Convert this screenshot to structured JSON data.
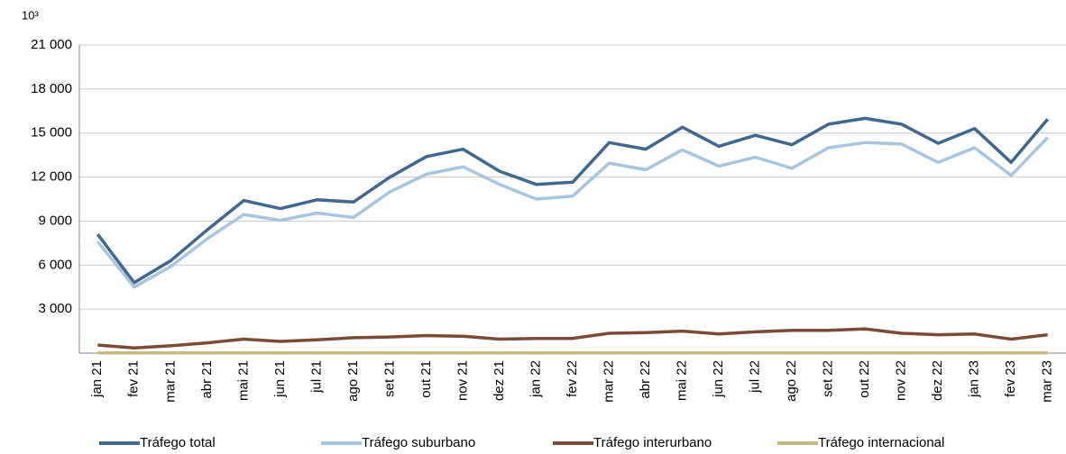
{
  "chart_data": {
    "type": "line",
    "y_label": "10³",
    "categories": [
      "jan 21",
      "fev 21",
      "mar 21",
      "abr 21",
      "mai 21",
      "jun 21",
      "jul 21",
      "ago 21",
      "set 21",
      "out 21",
      "nov 21",
      "dez 21",
      "jan 22",
      "fev 22",
      "mar 22",
      "abr 22",
      "mai 22",
      "jun 22",
      "jul 22",
      "ago 22",
      "set 22",
      "out 22",
      "nov 22",
      "dez 22",
      "jan 23",
      "fev 23",
      "mar 23"
    ],
    "series": [
      {
        "name": "Tráfego total",
        "color": "#41688c",
        "values": [
          8100,
          4800,
          6300,
          8400,
          10400,
          9850,
          10450,
          10300,
          12000,
          13400,
          13900,
          12400,
          11500,
          11650,
          14350,
          13900,
          15400,
          14100,
          14850,
          14200,
          15600,
          16000,
          15600,
          14300,
          15300,
          13000,
          15950
        ]
      },
      {
        "name": "Tráfego suburbano",
        "color": "#a9c5dd",
        "values": [
          7600,
          4500,
          5900,
          7800,
          9450,
          9050,
          9550,
          9250,
          11000,
          12200,
          12700,
          11500,
          10500,
          10700,
          12950,
          12500,
          13850,
          12750,
          13350,
          12600,
          14000,
          14350,
          14250,
          13000,
          14000,
          12100,
          14700
        ]
      },
      {
        "name": "Tráfego interurbano",
        "color": "#7b4b3a",
        "values": [
          550,
          350,
          500,
          700,
          950,
          800,
          900,
          1050,
          1100,
          1200,
          1150,
          950,
          1000,
          1000,
          1350,
          1400,
          1500,
          1300,
          1450,
          1550,
          1550,
          1650,
          1350,
          1250,
          1300,
          950,
          1250
        ]
      },
      {
        "name": "Tráfego internacional",
        "color": "#c5bb80",
        "values": [
          20,
          20,
          20,
          20,
          20,
          20,
          20,
          20,
          20,
          20,
          20,
          20,
          20,
          20,
          20,
          20,
          20,
          20,
          20,
          20,
          20,
          20,
          20,
          20,
          20,
          20,
          20
        ]
      }
    ],
    "ylim": [
      0,
      21000
    ],
    "yticks": [
      {
        "value": 3000,
        "label": "3 000"
      },
      {
        "value": 6000,
        "label": "6 000"
      },
      {
        "value": 9000,
        "label": "9 000"
      },
      {
        "value": 12000,
        "label": "12 000"
      },
      {
        "value": 15000,
        "label": "15 000"
      },
      {
        "value": 18000,
        "label": "18 000"
      },
      {
        "value": 21000,
        "label": "21 000"
      }
    ],
    "grid": true
  }
}
